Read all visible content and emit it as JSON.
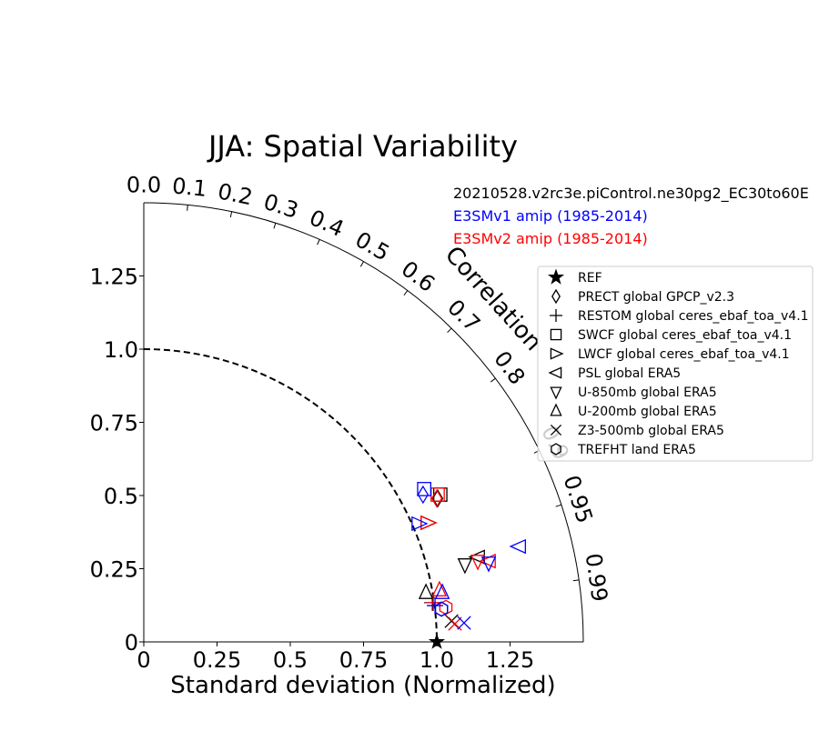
{
  "chart_data": {
    "type": "scatter",
    "subtype": "taylor-diagram",
    "title": "JJA: Spatial Variability",
    "xlabel": "Standard deviation (Normalized)",
    "arc_label": "Correlation",
    "xlim": [
      0,
      1.5
    ],
    "ylim": [
      0,
      1.5
    ],
    "x_ticks": [
      "0",
      "0.25",
      "0.5",
      "0.75",
      "1.0",
      "1.25"
    ],
    "x_tick_values": [
      0,
      0.25,
      0.5,
      0.75,
      1.0,
      1.25
    ],
    "y_ticks": [
      "0",
      "0.25",
      "0.5",
      "0.75",
      "1.0",
      "1.25"
    ],
    "y_tick_values": [
      0,
      0.25,
      0.5,
      0.75,
      1.0,
      1.25
    ],
    "correlation_ticks": [
      "0.0",
      "0.1",
      "0.2",
      "0.3",
      "0.4",
      "0.5",
      "0.6",
      "0.7",
      "0.8",
      "0.9",
      "0.95",
      "0.99"
    ],
    "correlation_values": [
      0.0,
      0.1,
      0.2,
      0.3,
      0.4,
      0.5,
      0.6,
      0.7,
      0.8,
      0.9,
      0.95,
      0.99
    ],
    "reference_std": 1.0,
    "series_labels": [
      {
        "text": "20210528.v2rc3e.piControl.ne30pg2_EC30to60E",
        "color": "#000000"
      },
      {
        "text": "E3SMv1 amip (1985-2014)",
        "color": "#0000ff"
      },
      {
        "text": "E3SMv2 amip (1985-2014)",
        "color": "#ff0000"
      }
    ],
    "legend_position": "right",
    "legend": [
      {
        "label": "REF",
        "marker": "star"
      },
      {
        "label": "PRECT global GPCP_v2.3",
        "marker": "diamond"
      },
      {
        "label": "RESTOM global ceres_ebaf_toa_v4.1",
        "marker": "plus"
      },
      {
        "label": "SWCF global ceres_ebaf_toa_v4.1",
        "marker": "square"
      },
      {
        "label": "LWCF global ceres_ebaf_toa_v4.1",
        "marker": "triangle-right"
      },
      {
        "label": "PSL global ERA5",
        "marker": "triangle-left"
      },
      {
        "label": "U-850mb global ERA5",
        "marker": "triangle-down"
      },
      {
        "label": "U-200mb global ERA5",
        "marker": "triangle-up"
      },
      {
        "label": "Z3-500mb global ERA5",
        "marker": "x"
      },
      {
        "label": "TREFHT land ERA5",
        "marker": "hexagon"
      }
    ],
    "points": [
      {
        "variable": "PRECT",
        "marker": "diamond",
        "black": [
          1.003,
          0.49
        ],
        "blue": [
          0.953,
          0.503
        ],
        "red": [
          1.0,
          0.49
        ]
      },
      {
        "variable": "RESTOM",
        "marker": "plus",
        "black": [
          0.985,
          0.134
        ],
        "blue": [
          0.994,
          0.124
        ],
        "red": [
          0.988,
          0.134
        ]
      },
      {
        "variable": "SWCF",
        "marker": "square",
        "black": [
          1.012,
          0.503
        ],
        "blue": [
          0.957,
          0.522
        ],
        "red": [
          1.003,
          0.503
        ]
      },
      {
        "variable": "LWCF",
        "marker": "triangle-right",
        "black": [
          0.969,
          0.407
        ],
        "blue": [
          0.938,
          0.404
        ],
        "red": [
          0.969,
          0.407
        ]
      },
      {
        "variable": "PSL",
        "marker": "triangle-left",
        "black": [
          1.14,
          0.29
        ],
        "blue": [
          1.28,
          0.326
        ],
        "red": [
          1.177,
          0.276
        ]
      },
      {
        "variable": "U-850mb",
        "marker": "triangle-down",
        "black": [
          1.096,
          0.264
        ],
        "blue": [
          1.177,
          0.27
        ],
        "red": [
          1.14,
          0.276
        ]
      },
      {
        "variable": "U-200mb",
        "marker": "triangle-up",
        "black": [
          0.963,
          0.168
        ],
        "blue": [
          1.019,
          0.168
        ],
        "red": [
          1.009,
          0.177
        ]
      },
      {
        "variable": "Z3-500mb",
        "marker": "x",
        "black": [
          1.05,
          0.071
        ],
        "blue": [
          1.093,
          0.065
        ],
        "red": [
          1.062,
          0.062
        ]
      },
      {
        "variable": "TREFHT",
        "marker": "hexagon",
        "black": [
          1.016,
          0.112
        ],
        "blue": [
          1.016,
          0.112
        ],
        "red": [
          1.031,
          0.118
        ]
      }
    ],
    "colors": {
      "black": "#000000",
      "blue": "#0000ff",
      "red": "#ff0000"
    }
  }
}
